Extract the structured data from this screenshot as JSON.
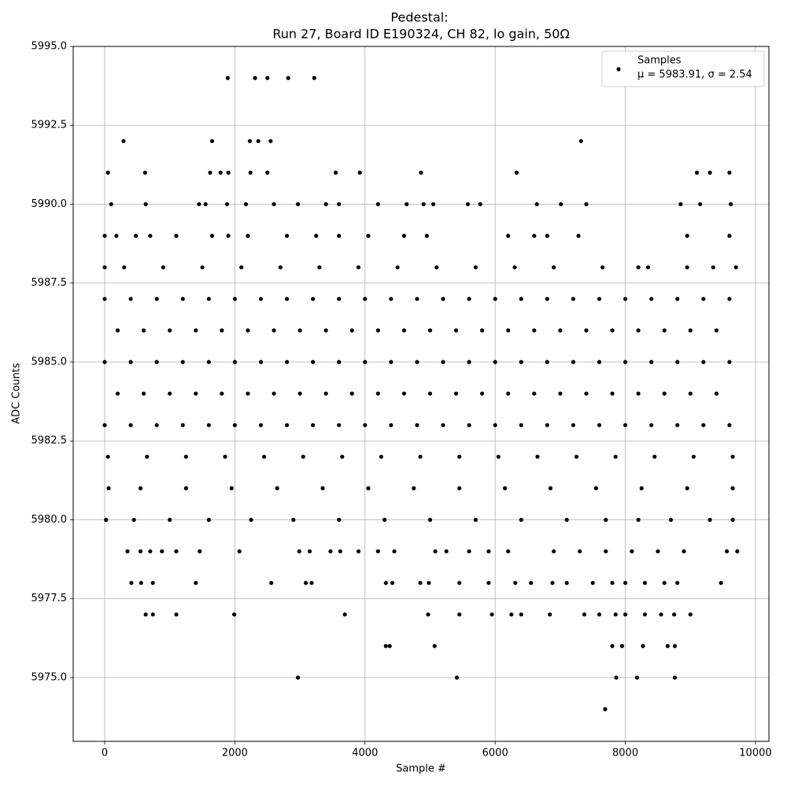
{
  "chart_data": {
    "type": "scatter",
    "title": "Pedestal:",
    "subtitle": "Run 27, Board ID E190324, CH 82, lo gain, 50Ω",
    "x_label": "Sample #",
    "y_label": "ADC Counts",
    "xlim": [
      -484,
      10206
    ],
    "ylim": [
      5972.98,
      5995
    ],
    "xticks": [
      0,
      2000,
      4000,
      6000,
      8000,
      10000
    ],
    "yticks": [
      {
        "value": 5975,
        "label": "5975.0"
      },
      {
        "value": 5977.5,
        "label": "5977.5"
      },
      {
        "value": 5980,
        "label": "5980.0"
      },
      {
        "value": 5982.5,
        "label": "5982.5"
      },
      {
        "value": 5985,
        "label": "5985.0"
      },
      {
        "value": 5987.5,
        "label": "5987.5"
      },
      {
        "value": 5990,
        "label": "5990.0"
      },
      {
        "value": 5992.5,
        "label": "5992.5"
      },
      {
        "value": 5995,
        "label": "5995.0"
      }
    ],
    "grid": true,
    "legend": "upper right",
    "series": [
      {
        "name": "Samples",
        "stats": "μ = 5983.91, σ = 2.54",
        "color": "#000000",
        "levels": [
          {
            "value": 5987,
            "x": [
              0,
              400,
              800,
              1200,
              1600,
              2000,
              2400,
              2800,
              3200,
              3600,
              4000,
              4400,
              4800,
              5200,
              5600,
              6000,
              6400,
              6800,
              7200,
              7600,
              8000,
              8400,
              8800,
              9200,
              9600
            ]
          },
          {
            "value": 5986,
            "x": [
              200,
              600,
              1000,
              1400,
              1800,
              2200,
              2600,
              3000,
              3400,
              3800,
              4200,
              4600,
              5000,
              5400,
              5800,
              6200,
              6600,
              7000,
              7400,
              7800,
              8200,
              8600,
              9000,
              9400
            ]
          },
          {
            "value": 5985,
            "x": [
              0,
              400,
              800,
              1200,
              1600,
              2000,
              2400,
              2800,
              3200,
              3600,
              4000,
              4400,
              4800,
              5200,
              5600,
              6000,
              6400,
              6800,
              7200,
              7600,
              8000,
              8400,
              8800,
              9200,
              9600
            ]
          },
          {
            "value": 5984,
            "x": [
              200,
              600,
              1000,
              1400,
              1800,
              2200,
              2600,
              3000,
              3400,
              3800,
              4200,
              4600,
              5000,
              5400,
              5800,
              6200,
              6600,
              7000,
              7400,
              7800,
              8200,
              8600,
              9000,
              9400
            ]
          },
          {
            "value": 5983,
            "x": [
              0,
              400,
              800,
              1200,
              1600,
              2000,
              2400,
              2800,
              3200,
              3600,
              4000,
              4400,
              4800,
              5200,
              5600,
              6000,
              6400,
              6800,
              7200,
              7600,
              8000,
              8400,
              8800,
              9200,
              9600
            ]
          },
          {
            "value": 5982,
            "x": [
              50,
              650,
              1250,
              1850,
              2450,
              3050,
              3650,
              4250,
              4850,
              5450,
              6050,
              6650,
              7250,
              7850,
              8450,
              9050,
              9650
            ]
          },
          {
            "value": 5988,
            "x": [
              0,
              300,
              900,
              1500,
              2100,
              2700,
              3300,
              3900,
              4500,
              5100,
              5700,
              6300,
              6900,
              7650,
              8200,
              8350,
              8950,
              9350,
              9700
            ]
          },
          {
            "value": 5981,
            "x": [
              60,
              550,
              1250,
              1950,
              2650,
              3350,
              4050,
              4750,
              5450,
              6150,
              6850,
              7550,
              8250,
              8950,
              9650
            ]
          },
          {
            "value": 5980,
            "x": [
              20,
              450,
              1000,
              1600,
              2250,
              2900,
              3600,
              4300,
              5000,
              5700,
              6400,
              7100,
              7700,
              8200,
              8700,
              9300,
              9650
            ]
          },
          {
            "value": 5989,
            "x": [
              0,
              180,
              480,
              700,
              1100,
              1650,
              1900,
              2200,
              2800,
              3250,
              3600,
              4050,
              4600,
              4950,
              6200,
              6600,
              6800,
              7280,
              8950,
              9600
            ]
          },
          {
            "value": 5990,
            "x": [
              100,
              630,
              1450,
              1550,
              1880,
              2170,
              2600,
              2970,
              3400,
              3600,
              4200,
              4640,
              4900,
              5050,
              5580,
              5770,
              6640,
              7010,
              7400,
              8850,
              9150,
              9620
            ]
          },
          {
            "value": 5991,
            "x": [
              50,
              620,
              1620,
              1780,
              1900,
              2240,
              2500,
              3550,
              3920,
              4860,
              6330,
              9100,
              9300,
              9600
            ]
          },
          {
            "value": 5992,
            "x": [
              290,
              1650,
              2230,
              2360,
              2550,
              7320
            ]
          },
          {
            "value": 5994,
            "x": [
              1890,
              2310,
              2500,
              2820,
              3220
            ]
          },
          {
            "value": 5979,
            "x": [
              350,
              550,
              700,
              880,
              1100,
              1460,
              2070,
              2990,
              3150,
              3470,
              3620,
              3900,
              4200,
              4450,
              5080,
              5250,
              5600,
              5900,
              6200,
              6900,
              7300,
              7700,
              8100,
              8500,
              8900,
              9560,
              9720
            ]
          },
          {
            "value": 5978,
            "x": [
              410,
              560,
              740,
              1400,
              2560,
              3090,
              3180,
              4320,
              4420,
              4850,
              4980,
              5450,
              5900,
              6310,
              6550,
              6880,
              7100,
              7500,
              7800,
              8000,
              8300,
              8600,
              8800,
              9470
            ]
          },
          {
            "value": 5977,
            "x": [
              630,
              740,
              1100,
              1990,
              3690,
              4970,
              5450,
              5950,
              6250,
              6400,
              6840,
              7370,
              7600,
              7850,
              8000,
              8300,
              8550,
              8750,
              9000
            ]
          },
          {
            "value": 5976,
            "x": [
              4320,
              4380,
              5070,
              7800,
              7950,
              8270,
              8650,
              8760
            ]
          },
          {
            "value": 5975,
            "x": [
              2970,
              5410,
              7860,
              8180,
              8760
            ]
          },
          {
            "value": 5974,
            "x": [
              7690
            ]
          }
        ]
      }
    ]
  }
}
